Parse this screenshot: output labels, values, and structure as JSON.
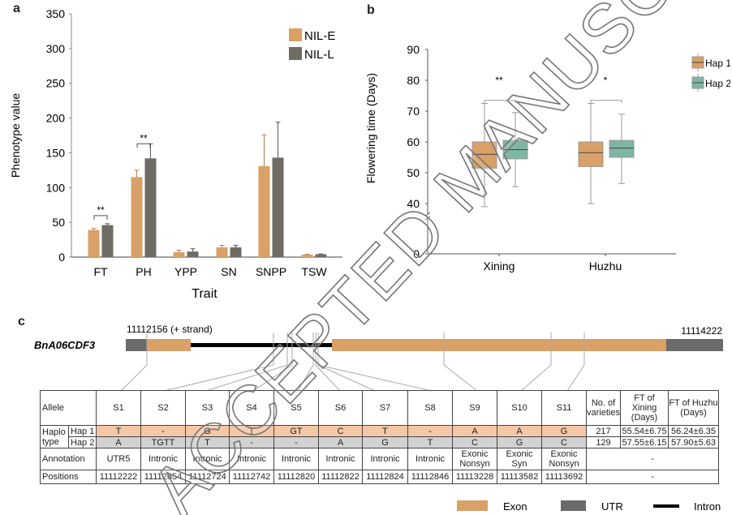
{
  "panels": {
    "a": "a",
    "b": "b",
    "c": "c"
  },
  "chart_data": [
    {
      "type": "bar",
      "xlabel": "Trait",
      "ylabel": "Phenotype value",
      "ylim": [
        0,
        350
      ],
      "yticks": [
        0,
        50,
        100,
        150,
        200,
        250,
        300,
        350
      ],
      "categories": [
        "FT",
        "PH",
        "YPP",
        "SN",
        "SNPP",
        "TSW"
      ],
      "legend_position": "top-right",
      "grid": false,
      "series": [
        {
          "name": "NIL-E",
          "color": "#d9a067",
          "values": [
            39,
            115,
            7,
            14,
            131,
            3.5
          ],
          "errors": [
            2,
            10,
            3,
            3,
            45,
            0.5
          ]
        },
        {
          "name": "NIL-L",
          "color": "#6f6b65",
          "values": [
            46,
            142,
            8,
            14,
            143,
            4
          ],
          "errors": [
            2,
            21,
            4,
            3,
            51,
            0.5
          ]
        }
      ],
      "significance": [
        {
          "category": "FT",
          "label": "**"
        },
        {
          "category": "PH",
          "label": "**"
        }
      ]
    },
    {
      "type": "box",
      "ylabel": "Flowering time (Days)",
      "yticks": [
        0,
        40,
        50,
        60,
        70,
        80,
        90
      ],
      "ylim": [
        40,
        90
      ],
      "axis_break": true,
      "categories": [
        "Xining",
        "Huzhu"
      ],
      "legend_position": "right",
      "series": [
        {
          "name": "Hap 1",
          "color": "#d9a067",
          "boxes": [
            {
              "min": 39,
              "q1": 51.5,
              "median": 56,
              "q3": 60,
              "max": 72.5
            },
            {
              "min": 40,
              "q1": 52,
              "median": 56.5,
              "q3": 60,
              "max": 72.5
            }
          ]
        },
        {
          "name": "Hap 2",
          "color": "#7fb5a5",
          "boxes": [
            {
              "min": 45.5,
              "q1": 54.5,
              "median": 57.5,
              "q3": 60.5,
              "max": 69.5
            },
            {
              "min": 46.5,
              "q1": 55,
              "median": 58,
              "q3": 60.5,
              "max": 69
            }
          ]
        }
      ],
      "significance": [
        {
          "category": "Xining",
          "label": "**"
        },
        {
          "category": "Huzhu",
          "label": "*"
        }
      ]
    }
  ],
  "gene": {
    "name": "BnA06CDF3",
    "start_label": "11112156 (+ strand)",
    "end_label": "11114222",
    "colors": {
      "exon": "#d9a067",
      "utr": "#6b6b6b",
      "intron": "#000000"
    },
    "legend": {
      "exon": "Exon",
      "utr": "UTR",
      "intron": "Intron"
    }
  },
  "table": {
    "allele_label": "Allele",
    "haplo_label": "Haplo type",
    "hap1_label": "Hap 1",
    "hap2_label": "Hap 2",
    "annotation_label": "Annotation",
    "positions_label": "Positions",
    "varieties_header": "No. of varieties",
    "ft_xining_header": "FT of Xining (Days)",
    "ft_huzhu_header": "FT of Huzhu (Days)",
    "dash": "-",
    "sites": [
      {
        "id": "S1",
        "hap1": "T",
        "hap2": "A",
        "annotation": "UTR5",
        "position": "11112222"
      },
      {
        "id": "S2",
        "hap1": "-",
        "hap2": "TGTT",
        "annotation": "Intronic",
        "position": "11112654"
      },
      {
        "id": "S3",
        "hap1": "G",
        "hap2": "T",
        "annotation": "Intronic",
        "position": "11112724"
      },
      {
        "id": "S4",
        "hap1": "T",
        "hap2": "-",
        "annotation": "Intronic",
        "position": "11112742"
      },
      {
        "id": "S5",
        "hap1": "GT",
        "hap2": "-",
        "annotation": "Intronic",
        "position": "11112820"
      },
      {
        "id": "S6",
        "hap1": "C",
        "hap2": "A",
        "annotation": "Intronic",
        "position": "11112822"
      },
      {
        "id": "S7",
        "hap1": "T",
        "hap2": "G",
        "annotation": "Intronic",
        "position": "11112824"
      },
      {
        "id": "S8",
        "hap1": "-",
        "hap2": "T",
        "annotation": "Intronic",
        "position": "11112846"
      },
      {
        "id": "S9",
        "hap1": "A",
        "hap2": "C",
        "annotation": "Exonic Nonsyn",
        "position": "11113228"
      },
      {
        "id": "S10",
        "hap1": "A",
        "hap2": "G",
        "annotation": "Exonic Syn",
        "position": "11113582"
      },
      {
        "id": "S11",
        "hap1": "G",
        "hap2": "C",
        "annotation": "Exonic Nonsyn",
        "position": "11113692"
      }
    ],
    "hap1_stats": {
      "varieties": "217",
      "ft_xining": "55.54±6.75",
      "ft_huzhu": "56.24±6.35"
    },
    "hap2_stats": {
      "varieties": "129",
      "ft_xining": "57.55±6.15",
      "ft_huzhu": "57.90±5.63"
    }
  },
  "watermark": "ACCEPTED MANUSCRIPT"
}
